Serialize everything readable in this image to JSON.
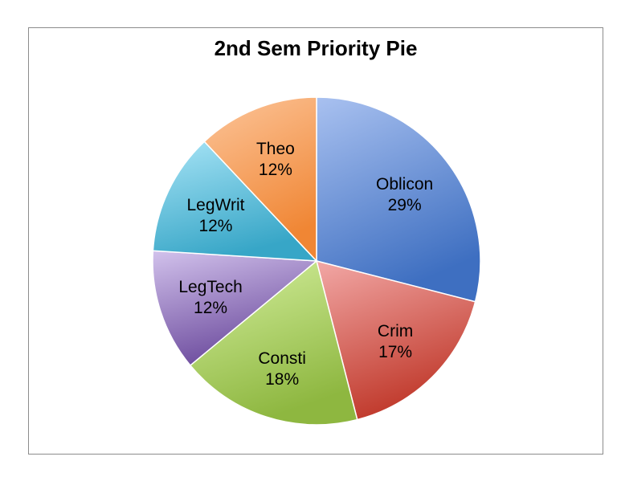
{
  "chart_data": {
    "type": "pie",
    "title": "2nd Sem Priority Pie",
    "slices": [
      {
        "label": "Oblicon",
        "percent_label": "29%",
        "value": 29,
        "color_light": "#a9c1f0",
        "color_dark": "#3e6fc1"
      },
      {
        "label": "Crim",
        "percent_label": "17%",
        "value": 17,
        "color_light": "#f2a8a6",
        "color_dark": "#c0392b"
      },
      {
        "label": "Consti",
        "percent_label": "18%",
        "value": 18,
        "color_light": "#d4ef9e",
        "color_dark": "#8eb740"
      },
      {
        "label": "LegTech",
        "percent_label": "12%",
        "value": 12,
        "color_light": "#d2c2ec",
        "color_dark": "#6d4c9e"
      },
      {
        "label": "LegWrit",
        "percent_label": "12%",
        "value": 12,
        "color_light": "#a8e4f6",
        "color_dark": "#37a6c7"
      },
      {
        "label": "Theo",
        "percent_label": "12%",
        "value": 12,
        "color_light": "#fcc59a",
        "color_dark": "#f08634"
      }
    ],
    "start_angle_deg": 0,
    "direction": "clockwise",
    "legend": "none"
  }
}
